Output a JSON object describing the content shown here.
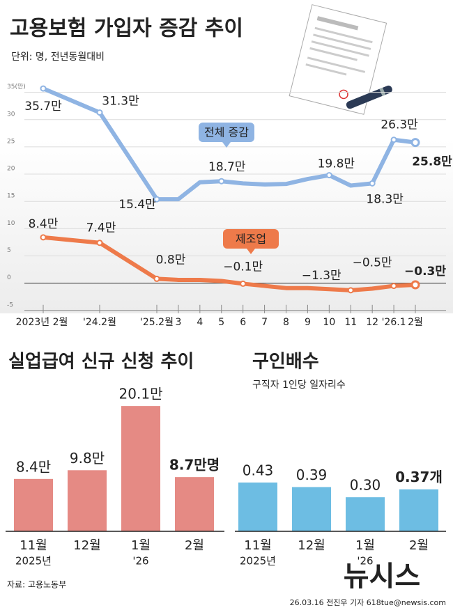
{
  "header": {
    "title": "고용보험 가입자 증감 추이",
    "unit_note": "단위: 명, 전년동월대비"
  },
  "chart_data": [
    {
      "type": "line",
      "categories": [
        "2023년 2월",
        "'24.2월",
        "'25.2월",
        "3",
        "4",
        "5",
        "6",
        "7",
        "8",
        "9",
        "10",
        "11",
        "12",
        "'26.1",
        "2월"
      ],
      "series": [
        {
          "name": "전체 증감",
          "color": "#8fb4e3",
          "values": [
            35.7,
            31.3,
            15.4,
            15.4,
            18.5,
            18.7,
            18.3,
            18.1,
            18.2,
            19.1,
            19.8,
            17.9,
            18.3,
            26.3,
            25.8
          ],
          "value_labels": [
            "35.7만",
            "31.3만",
            "15.4만",
            null,
            null,
            "18.7만",
            null,
            null,
            null,
            null,
            "19.8만",
            null,
            "18.3만",
            "26.3만",
            "25.8만"
          ]
        },
        {
          "name": "제조업",
          "color": "#ee7a4a",
          "values": [
            8.4,
            7.4,
            0.8,
            0.6,
            0.6,
            0.4,
            -0.1,
            -0.5,
            -0.9,
            -0.9,
            -1.1,
            -1.3,
            -1.0,
            -0.5,
            -0.3
          ],
          "value_labels": [
            "8.4만",
            "7.4만",
            "0.8만",
            null,
            null,
            null,
            "−0.1만",
            null,
            null,
            null,
            null,
            "−1.3만",
            null,
            "−0.5만",
            "−0.3만"
          ]
        }
      ],
      "ylim": [
        -5,
        35
      ],
      "yticks": [
        {
          "value": 35,
          "label": "35(만)"
        },
        30,
        25,
        20,
        15,
        10,
        5,
        0,
        -5
      ],
      "grid": true
    },
    {
      "type": "bar",
      "title": "실업급여 신규 신청 추이",
      "categories": [
        "11월",
        "12월",
        "1월",
        "2월"
      ],
      "category_notes": [
        "2025년",
        null,
        "'26",
        null
      ],
      "values": [
        8.4,
        9.8,
        20.1,
        8.7
      ],
      "value_labels": [
        "8.4만",
        "9.8만",
        "20.1만",
        "8.7만명"
      ],
      "color": "#e58a84"
    },
    {
      "type": "bar",
      "title": "구인배수",
      "subtitle": "구직자 1인당 일자리수",
      "categories": [
        "11월",
        "12월",
        "1월",
        "2월"
      ],
      "category_notes": [
        "2025년",
        null,
        "'26",
        null
      ],
      "values": [
        0.43,
        0.39,
        0.3,
        0.37
      ],
      "value_labels": [
        "0.43",
        "0.39",
        "0.30",
        "0.37개"
      ],
      "color": "#6dbde3"
    }
  ],
  "footer": {
    "source": "자료: 고용노동부",
    "credit": "26.03.16 전진우 기자 618tue@newsis.com",
    "watermark": "뉴시스"
  }
}
